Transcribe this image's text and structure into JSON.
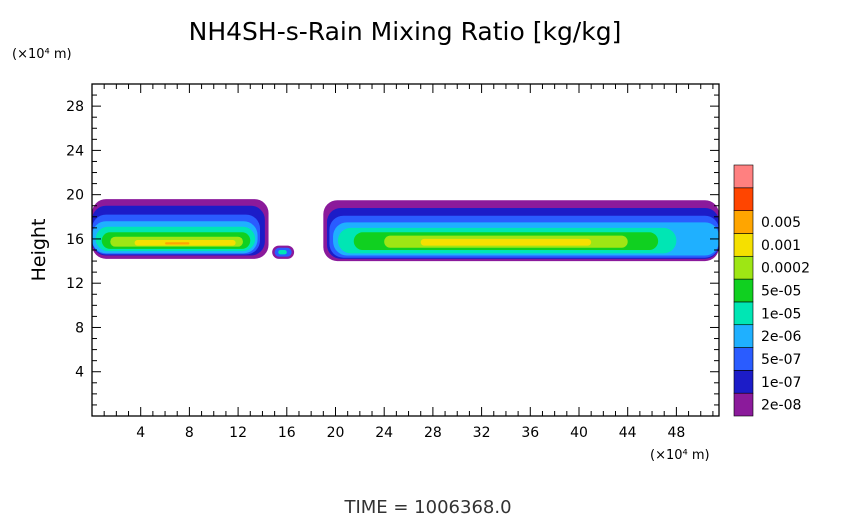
{
  "chart_data": {
    "type": "contour",
    "title": "NH4SH-s-Rain Mixing Ratio [kg/kg]",
    "ylabel": "Height",
    "y_unit": "(×10⁴ m)",
    "x_unit": "(×10⁴ m)",
    "xlim": [
      0,
      51.5
    ],
    "ylim": [
      0,
      30
    ],
    "x_ticks": [
      4,
      8,
      12,
      16,
      20,
      24,
      28,
      32,
      36,
      40,
      44,
      48
    ],
    "y_ticks": [
      4,
      8,
      12,
      16,
      20,
      24,
      28
    ],
    "time_label": "TIME = 1006368.0",
    "colorbar": {
      "levels": [
        {
          "label": "2e-08",
          "color": "#8b1a9b"
        },
        {
          "label": "1e-07",
          "color": "#1c1cc8"
        },
        {
          "label": "5e-07",
          "color": "#2a5cff"
        },
        {
          "label": "2e-06",
          "color": "#1fb0ff"
        },
        {
          "label": "1e-05",
          "color": "#00e6b4"
        },
        {
          "label": "5e-05",
          "color": "#10d020"
        },
        {
          "label": "0.0002",
          "color": "#9ee614"
        },
        {
          "label": "0.001",
          "color": "#f5e000"
        },
        {
          "label": "0.005",
          "color": "#ffa500"
        },
        {
          "label": "",
          "color": "#ff4500"
        },
        {
          "label": "",
          "color": "#ff8080"
        }
      ]
    },
    "regions": [
      {
        "name": "left-cloud",
        "layers": [
          {
            "level": 0,
            "x0": 0.0,
            "x1": 14.5,
            "top": 19.6,
            "bot": 14.2
          },
          {
            "level": 1,
            "x0": 0.0,
            "x1": 14.2,
            "top": 19.0,
            "bot": 14.5
          },
          {
            "level": 2,
            "x0": 0.0,
            "x1": 13.8,
            "top": 18.2,
            "bot": 14.6
          },
          {
            "level": 3,
            "x0": 0.0,
            "x1": 13.6,
            "top": 17.6,
            "bot": 14.7
          },
          {
            "level": 4,
            "x0": 0.3,
            "x1": 13.4,
            "top": 17.1,
            "bot": 14.9
          },
          {
            "level": 5,
            "x0": 0.8,
            "x1": 13.0,
            "top": 16.6,
            "bot": 15.1
          },
          {
            "level": 6,
            "x0": 1.5,
            "x1": 12.4,
            "top": 16.2,
            "bot": 15.3
          },
          {
            "level": 7,
            "x0": 3.5,
            "x1": 11.8,
            "top": 15.9,
            "bot": 15.4
          },
          {
            "level": 8,
            "x0": 6.0,
            "x1": 8.0,
            "top": 15.7,
            "bot": 15.5
          }
        ]
      },
      {
        "name": "right-cloud",
        "layers": [
          {
            "level": 0,
            "x0": 19.0,
            "x1": 51.5,
            "top": 19.5,
            "bot": 14.0
          },
          {
            "level": 1,
            "x0": 19.3,
            "x1": 51.5,
            "top": 18.8,
            "bot": 14.2
          },
          {
            "level": 2,
            "x0": 19.5,
            "x1": 51.5,
            "top": 18.1,
            "bot": 14.3
          },
          {
            "level": 3,
            "x0": 19.8,
            "x1": 51.5,
            "top": 17.5,
            "bot": 14.5
          },
          {
            "level": 4,
            "x0": 20.2,
            "x1": 48.0,
            "top": 17.0,
            "bot": 14.7
          },
          {
            "level": 5,
            "x0": 21.5,
            "x1": 46.5,
            "top": 16.6,
            "bot": 15.0
          },
          {
            "level": 6,
            "x0": 24.0,
            "x1": 44.0,
            "top": 16.3,
            "bot": 15.2
          },
          {
            "level": 7,
            "x0": 27.0,
            "x1": 41.0,
            "top": 16.0,
            "bot": 15.4
          }
        ]
      },
      {
        "name": "small-cell",
        "layers": [
          {
            "level": 0,
            "x0": 14.8,
            "x1": 16.6,
            "top": 15.4,
            "bot": 14.2
          },
          {
            "level": 2,
            "x0": 15.0,
            "x1": 16.4,
            "top": 15.2,
            "bot": 14.4
          },
          {
            "level": 4,
            "x0": 15.3,
            "x1": 16.0,
            "top": 15.0,
            "bot": 14.6
          }
        ]
      }
    ]
  }
}
